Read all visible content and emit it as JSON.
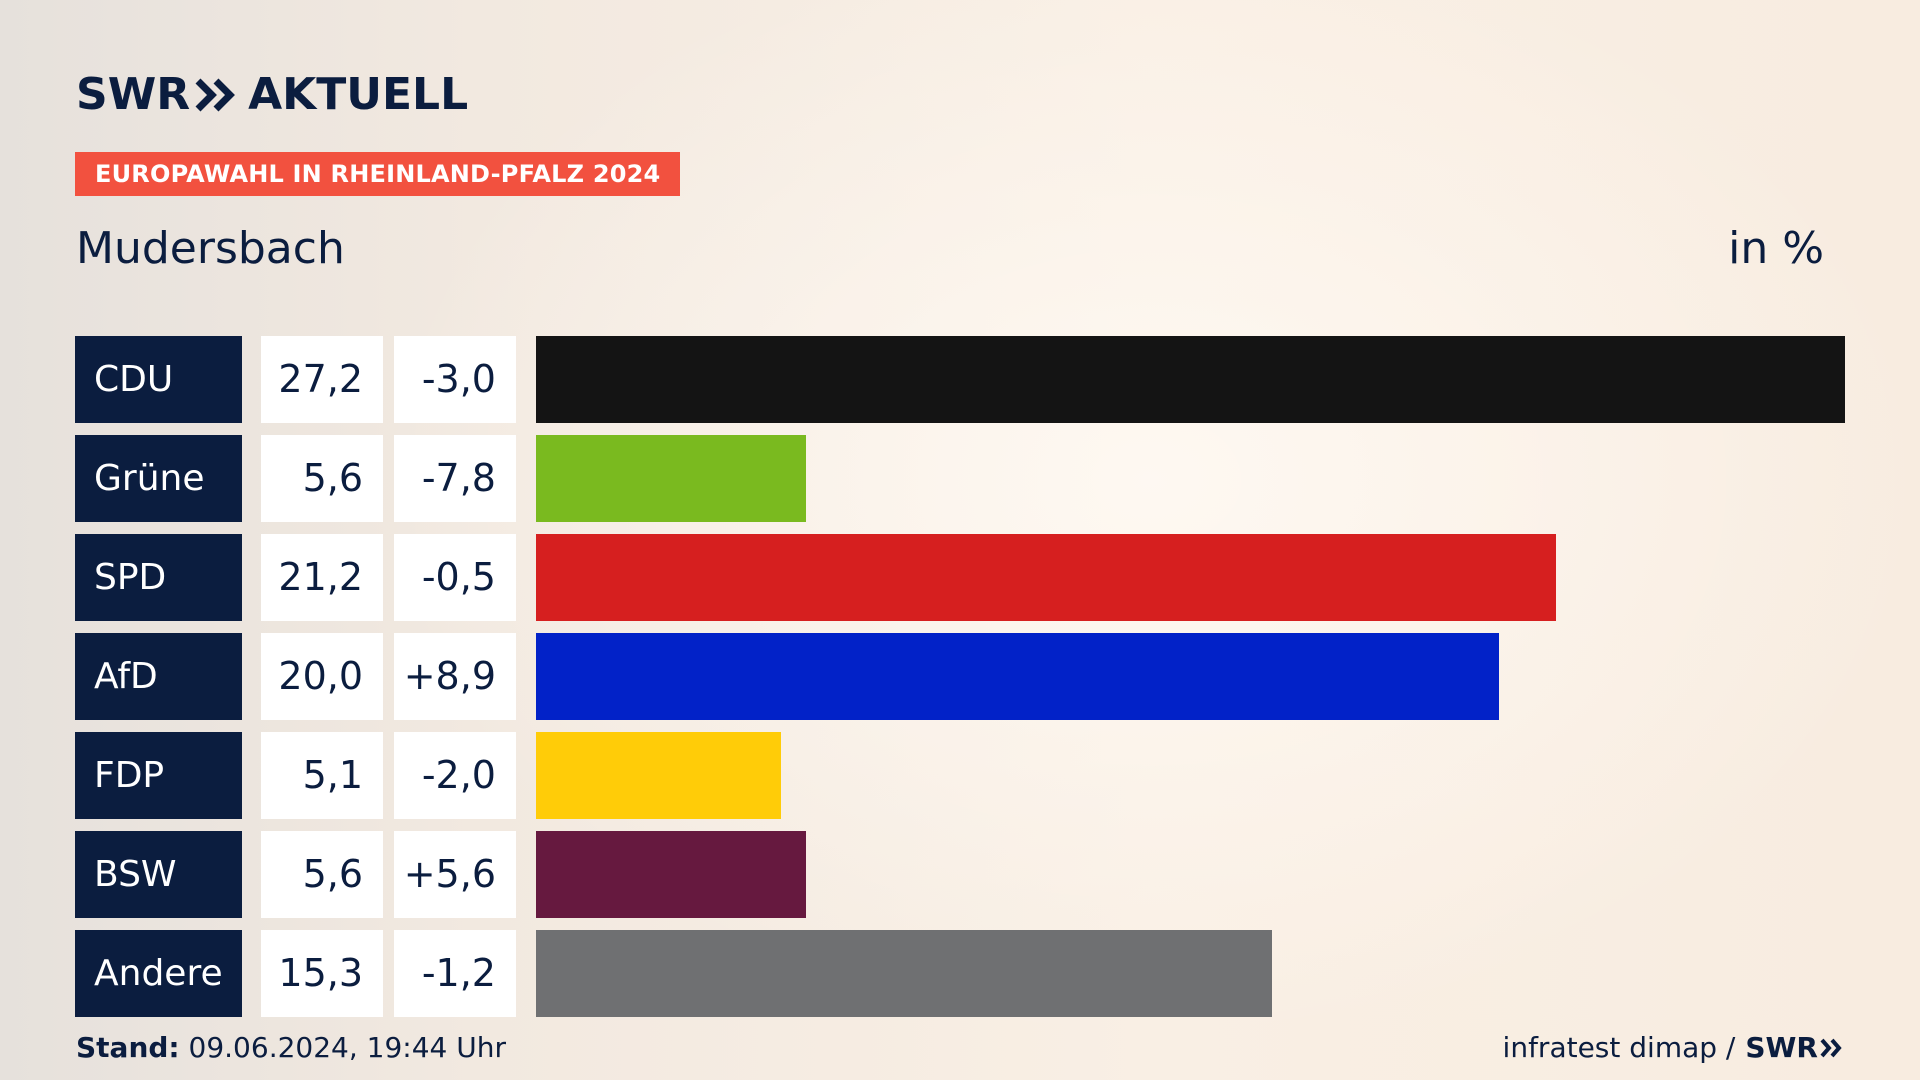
{
  "brand": {
    "logo_left": "SWR",
    "logo_right": "AKTUELL"
  },
  "tag": "EUROPAWAHL IN RHEINLAND-PFALZ 2024",
  "place": "Mudersbach",
  "unit": "in %",
  "colors": {
    "navy": "#0b1d3f",
    "tag": "#f2513f"
  },
  "chart_data": {
    "type": "bar",
    "orientation": "horizontal",
    "categories": [
      "CDU",
      "Grüne",
      "SPD",
      "AfD",
      "FDP",
      "BSW",
      "Andere"
    ],
    "values": [
      27.2,
      5.6,
      21.2,
      20.0,
      5.1,
      5.6,
      15.3
    ],
    "value_labels": [
      "27,2",
      "5,6",
      "21,2",
      "20,0",
      "5,1",
      "5,6",
      "15,3"
    ],
    "diff_labels": [
      "-3,0",
      "-7,8",
      "-0,5",
      "+8,9",
      "-2,0",
      "+5,6",
      "-1,2"
    ],
    "diffs": [
      -3.0,
      -7.8,
      -0.5,
      8.9,
      -2.0,
      5.6,
      -1.2
    ],
    "colors": [
      "#141414",
      "#7aba1f",
      "#d61f1f",
      "#0222c8",
      "#ffcc08",
      "#66193f",
      "#6f7072"
    ],
    "grid": false
  },
  "footer": {
    "stand_label": "Stand:",
    "stand_value": "09.06.2024, 19:44 Uhr",
    "source": "infratest dimap /",
    "source_brand": "SWR"
  }
}
